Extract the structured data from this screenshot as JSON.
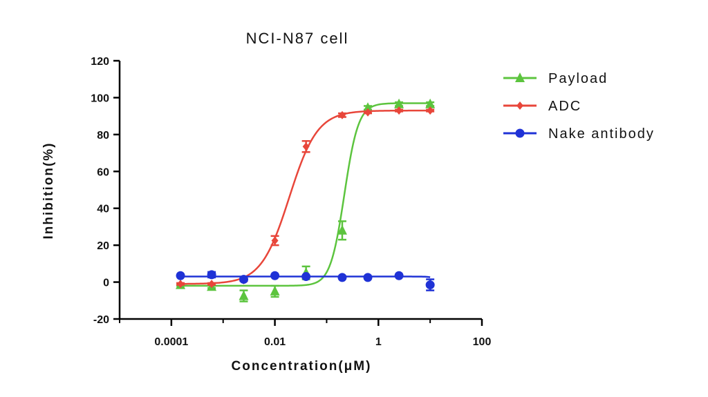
{
  "chart_data": {
    "type": "scatter",
    "title": "NCI-N87 cell",
    "xlabel": "Concentration(μM)",
    "ylabel": "Inhibition(%)",
    "x_scale": "log",
    "xlim": [
      1e-05,
      100
    ],
    "ylim": [
      -20,
      120
    ],
    "x_ticks": [
      0.0001,
      0.01,
      1,
      100
    ],
    "x_tick_labels": [
      "0.0001",
      "0.01",
      "1",
      "100"
    ],
    "y_ticks": [
      -20,
      0,
      20,
      40,
      60,
      80,
      100,
      120
    ],
    "y_tick_labels": [
      "-20",
      "0",
      "20",
      "40",
      "60",
      "80",
      "100",
      "120"
    ],
    "legend_position": "right",
    "series": [
      {
        "name": "Payload",
        "color": "#5cc43e",
        "marker": "triangle",
        "x": [
          0.00015,
          0.0006,
          0.0025,
          0.01,
          0.04,
          0.2,
          0.625,
          2.5,
          10
        ],
        "y": [
          -1.5,
          -2.5,
          -7.5,
          -5,
          5,
          28,
          94.5,
          96.5,
          96.5
        ],
        "err": [
          0.5,
          0.7,
          3,
          3,
          3.5,
          5,
          1,
          1,
          1
        ],
        "fit": {
          "bottom": -2,
          "top": 97,
          "ec50": 0.22,
          "hill": 3.2
        }
      },
      {
        "name": "ADC",
        "color": "#e8463a",
        "marker": "diamond",
        "x": [
          0.00015,
          0.0006,
          0.0025,
          0.01,
          0.04,
          0.2,
          0.625,
          2.5,
          10
        ],
        "y": [
          -1,
          -1,
          1,
          22.5,
          73.5,
          90.5,
          92,
          93,
          93
        ],
        "err": [
          0.5,
          0.5,
          0.5,
          2.5,
          3,
          1,
          0.5,
          0.5,
          0.5
        ],
        "fit": {
          "bottom": -1,
          "top": 93,
          "ec50": 0.019,
          "hill": 1.6
        }
      },
      {
        "name": "Nake antibody",
        "color": "#1f32d6",
        "marker": "circle",
        "x": [
          0.00015,
          0.0006,
          0.0025,
          0.01,
          0.04,
          0.2,
          0.625,
          2.5,
          10
        ],
        "y": [
          3.5,
          4,
          1.5,
          3.5,
          3,
          2.5,
          2.5,
          3.5,
          -1.5
        ],
        "err": [
          0.3,
          1.5,
          0.8,
          0.3,
          0.3,
          0.3,
          0.3,
          0.3,
          3
        ],
        "fit": {
          "bottom": -1.5,
          "top": 3,
          "ec50": 15,
          "hill": -6
        }
      }
    ]
  }
}
